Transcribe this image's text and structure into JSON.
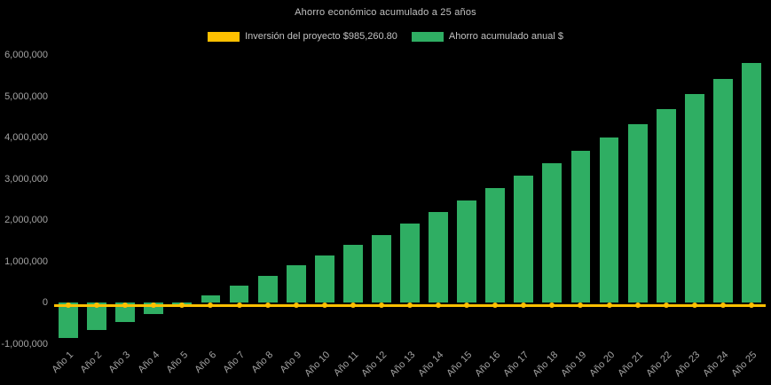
{
  "chart_data": {
    "type": "bar",
    "title": "Ahorro económico acumulado a 25 años",
    "categories": [
      "Año 1",
      "Año 2",
      "Año 3",
      "Año 4",
      "Año 5",
      "Año 6",
      "Año 7",
      "Año 8",
      "Año 9",
      "Año 10",
      "Año 11",
      "Año 12",
      "Año 13",
      "Año 14",
      "Año 15",
      "Año 16",
      "Año 17",
      "Año 18",
      "Año 19",
      "Año 20",
      "Año 21",
      "Año 22",
      "Año 23",
      "Año 24",
      "Año 25"
    ],
    "series": [
      {
        "name": "Inversión del proyecto $985,260.80",
        "type": "line",
        "color": "#FFC000",
        "constant_value": -60000
      },
      {
        "name": "Ahorro acumulado anual $",
        "type": "bar",
        "color": "#2FAE63",
        "values": [
          -850000,
          -650000,
          -470000,
          -270000,
          -50000,
          180000,
          420000,
          660000,
          910000,
          1150000,
          1400000,
          1650000,
          1920000,
          2200000,
          2480000,
          2780000,
          3080000,
          3380000,
          3680000,
          4000000,
          4330000,
          4700000,
          5050000,
          5430000,
          5800000
        ]
      }
    ],
    "xlabel": "",
    "ylabel": "",
    "ylim": [
      -1000000,
      6000000
    ],
    "yticks": [
      -1000000,
      0,
      1000000,
      2000000,
      3000000,
      4000000,
      5000000,
      6000000
    ],
    "grid": false,
    "legend_position": "top-center",
    "background_color": "#000000",
    "text_color": "#C2C2C2",
    "axis_label_color": "#A3A3A3"
  }
}
